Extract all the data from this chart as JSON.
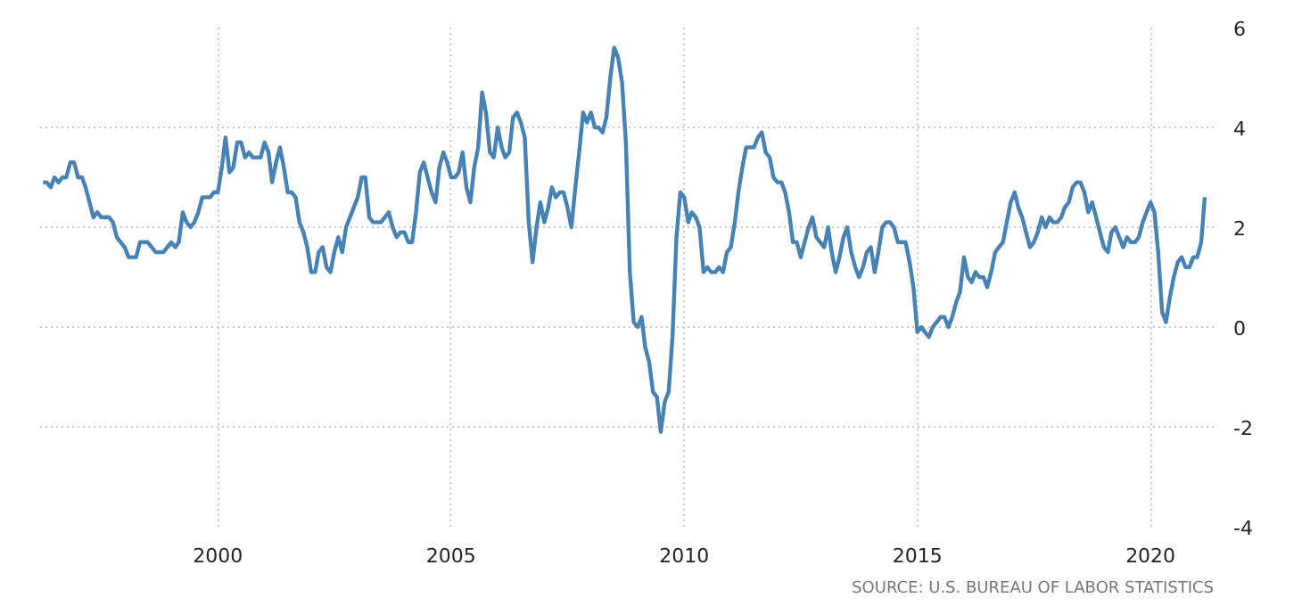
{
  "chart_data": {
    "type": "line",
    "x": [
      "1996-04",
      "1996-05",
      "1996-06",
      "1996-07",
      "1996-08",
      "1996-09",
      "1996-10",
      "1996-11",
      "1996-12",
      "1997-01",
      "1997-02",
      "1997-03",
      "1997-04",
      "1997-05",
      "1997-06",
      "1997-07",
      "1997-08",
      "1997-09",
      "1997-10",
      "1997-11",
      "1997-12",
      "1998-01",
      "1998-02",
      "1998-03",
      "1998-04",
      "1998-05",
      "1998-06",
      "1998-07",
      "1998-08",
      "1998-09",
      "1998-10",
      "1998-11",
      "1998-12",
      "1999-01",
      "1999-02",
      "1999-03",
      "1999-04",
      "1999-05",
      "1999-06",
      "1999-07",
      "1999-08",
      "1999-09",
      "1999-10",
      "1999-11",
      "1999-12",
      "2000-01",
      "2000-02",
      "2000-03",
      "2000-04",
      "2000-05",
      "2000-06",
      "2000-07",
      "2000-08",
      "2000-09",
      "2000-10",
      "2000-11",
      "2000-12",
      "2001-01",
      "2001-02",
      "2001-03",
      "2001-04",
      "2001-05",
      "2001-06",
      "2001-07",
      "2001-08",
      "2001-09",
      "2001-10",
      "2001-11",
      "2001-12",
      "2002-01",
      "2002-02",
      "2002-03",
      "2002-04",
      "2002-05",
      "2002-06",
      "2002-07",
      "2002-08",
      "2002-09",
      "2002-10",
      "2002-11",
      "2002-12",
      "2003-01",
      "2003-02",
      "2003-03",
      "2003-04",
      "2003-05",
      "2003-06",
      "2003-07",
      "2003-08",
      "2003-09",
      "2003-10",
      "2003-11",
      "2003-12",
      "2004-01",
      "2004-02",
      "2004-03",
      "2004-04",
      "2004-05",
      "2004-06",
      "2004-07",
      "2004-08",
      "2004-09",
      "2004-10",
      "2004-11",
      "2004-12",
      "2005-01",
      "2005-02",
      "2005-03",
      "2005-04",
      "2005-05",
      "2005-06",
      "2005-07",
      "2005-08",
      "2005-09",
      "2005-10",
      "2005-11",
      "2005-12",
      "2006-01",
      "2006-02",
      "2006-03",
      "2006-04",
      "2006-05",
      "2006-06",
      "2006-07",
      "2006-08",
      "2006-09",
      "2006-10",
      "2006-11",
      "2006-12",
      "2007-01",
      "2007-02",
      "2007-03",
      "2007-04",
      "2007-05",
      "2007-06",
      "2007-07",
      "2007-08",
      "2007-09",
      "2007-10",
      "2007-11",
      "2007-12",
      "2008-01",
      "2008-02",
      "2008-03",
      "2008-04",
      "2008-05",
      "2008-06",
      "2008-07",
      "2008-08",
      "2008-09",
      "2008-10",
      "2008-11",
      "2008-12",
      "2009-01",
      "2009-02",
      "2009-03",
      "2009-04",
      "2009-05",
      "2009-06",
      "2009-07",
      "2009-08",
      "2009-09",
      "2009-10",
      "2009-11",
      "2009-12",
      "2010-01",
      "2010-02",
      "2010-03",
      "2010-04",
      "2010-05",
      "2010-06",
      "2010-07",
      "2010-08",
      "2010-09",
      "2010-10",
      "2010-11",
      "2010-12",
      "2011-01",
      "2011-02",
      "2011-03",
      "2011-04",
      "2011-05",
      "2011-06",
      "2011-07",
      "2011-08",
      "2011-09",
      "2011-10",
      "2011-11",
      "2011-12",
      "2012-01",
      "2012-02",
      "2012-03",
      "2012-04",
      "2012-05",
      "2012-06",
      "2012-07",
      "2012-08",
      "2012-09",
      "2012-10",
      "2012-11",
      "2012-12",
      "2013-01",
      "2013-02",
      "2013-03",
      "2013-04",
      "2013-05",
      "2013-06",
      "2013-07",
      "2013-08",
      "2013-09",
      "2013-10",
      "2013-11",
      "2013-12",
      "2014-01",
      "2014-02",
      "2014-03",
      "2014-04",
      "2014-05",
      "2014-06",
      "2014-07",
      "2014-08",
      "2014-09",
      "2014-10",
      "2014-11",
      "2014-12",
      "2015-01",
      "2015-02",
      "2015-03",
      "2015-04",
      "2015-05",
      "2015-06",
      "2015-07",
      "2015-08",
      "2015-09",
      "2015-10",
      "2015-11",
      "2015-12",
      "2016-01",
      "2016-02",
      "2016-03",
      "2016-04",
      "2016-05",
      "2016-06",
      "2016-07",
      "2016-08",
      "2016-09",
      "2016-10",
      "2016-11",
      "2016-12",
      "2017-01",
      "2017-02",
      "2017-03",
      "2017-04",
      "2017-05",
      "2017-06",
      "2017-07",
      "2017-08",
      "2017-09",
      "2017-10",
      "2017-11",
      "2017-12",
      "2018-01",
      "2018-02",
      "2018-03",
      "2018-04",
      "2018-05",
      "2018-06",
      "2018-07",
      "2018-08",
      "2018-09",
      "2018-10",
      "2018-11",
      "2018-12",
      "2019-01",
      "2019-02",
      "2019-03",
      "2019-04",
      "2019-05",
      "2019-06",
      "2019-07",
      "2019-08",
      "2019-09",
      "2019-10",
      "2019-11",
      "2019-12",
      "2020-01",
      "2020-02",
      "2020-03",
      "2020-04",
      "2020-05",
      "2020-06",
      "2020-07",
      "2020-08",
      "2020-09",
      "2020-10",
      "2020-11",
      "2020-12",
      "2021-01",
      "2021-02",
      "2021-03"
    ],
    "series": [
      {
        "color": "#4682b4",
        "values": [
          2.9,
          2.9,
          2.8,
          3.0,
          2.9,
          3.0,
          3.0,
          3.3,
          3.3,
          3.0,
          3.0,
          2.8,
          2.5,
          2.2,
          2.3,
          2.2,
          2.2,
          2.2,
          2.1,
          1.8,
          1.7,
          1.6,
          1.4,
          1.4,
          1.4,
          1.7,
          1.7,
          1.7,
          1.6,
          1.5,
          1.5,
          1.5,
          1.6,
          1.7,
          1.6,
          1.7,
          2.3,
          2.1,
          2.0,
          2.1,
          2.3,
          2.6,
          2.6,
          2.6,
          2.7,
          2.7,
          3.2,
          3.8,
          3.1,
          3.2,
          3.7,
          3.7,
          3.4,
          3.5,
          3.4,
          3.4,
          3.4,
          3.7,
          3.5,
          2.9,
          3.3,
          3.6,
          3.2,
          2.7,
          2.7,
          2.6,
          2.1,
          1.9,
          1.6,
          1.1,
          1.1,
          1.5,
          1.6,
          1.2,
          1.1,
          1.5,
          1.8,
          1.5,
          2.0,
          2.2,
          2.4,
          2.6,
          3.0,
          3.0,
          2.2,
          2.1,
          2.1,
          2.1,
          2.2,
          2.3,
          2.0,
          1.8,
          1.9,
          1.9,
          1.7,
          1.7,
          2.3,
          3.1,
          3.3,
          3.0,
          2.7,
          2.5,
          3.2,
          3.5,
          3.3,
          3.0,
          3.0,
          3.1,
          3.5,
          2.8,
          2.5,
          3.2,
          3.6,
          4.7,
          4.3,
          3.5,
          3.4,
          4.0,
          3.6,
          3.4,
          3.5,
          4.2,
          4.3,
          4.1,
          3.8,
          2.1,
          1.3,
          2.0,
          2.5,
          2.1,
          2.4,
          2.8,
          2.6,
          2.7,
          2.7,
          2.4,
          2.0,
          2.8,
          3.5,
          4.3,
          4.1,
          4.3,
          4.0,
          4.0,
          3.9,
          4.2,
          5.0,
          5.6,
          5.4,
          4.9,
          3.7,
          1.1,
          0.1,
          0.0,
          0.2,
          -0.4,
          -0.7,
          -1.3,
          -1.4,
          -2.1,
          -1.5,
          -1.3,
          -0.2,
          1.8,
          2.7,
          2.6,
          2.1,
          2.3,
          2.2,
          2.0,
          1.1,
          1.2,
          1.1,
          1.1,
          1.2,
          1.1,
          1.5,
          1.6,
          2.1,
          2.7,
          3.2,
          3.6,
          3.6,
          3.6,
          3.8,
          3.9,
          3.5,
          3.4,
          3.0,
          2.9,
          2.9,
          2.7,
          2.3,
          1.7,
          1.7,
          1.4,
          1.7,
          2.0,
          2.2,
          1.8,
          1.7,
          1.6,
          2.0,
          1.5,
          1.1,
          1.4,
          1.8,
          2.0,
          1.5,
          1.2,
          1.0,
          1.2,
          1.5,
          1.6,
          1.1,
          1.5,
          2.0,
          2.1,
          2.1,
          2.0,
          1.7,
          1.7,
          1.7,
          1.3,
          0.8,
          -0.1,
          0.0,
          -0.1,
          -0.2,
          0.0,
          0.1,
          0.2,
          0.2,
          0.0,
          0.2,
          0.5,
          0.7,
          1.4,
          1.0,
          0.9,
          1.1,
          1.0,
          1.0,
          0.8,
          1.1,
          1.5,
          1.6,
          1.7,
          2.1,
          2.5,
          2.7,
          2.4,
          2.2,
          1.9,
          1.6,
          1.7,
          1.9,
          2.2,
          2.0,
          2.2,
          2.1,
          2.1,
          2.2,
          2.4,
          2.5,
          2.8,
          2.9,
          2.9,
          2.7,
          2.3,
          2.5,
          2.2,
          1.9,
          1.6,
          1.5,
          1.9,
          2.0,
          1.8,
          1.6,
          1.8,
          1.7,
          1.7,
          1.8,
          2.1,
          2.3,
          2.5,
          2.3,
          1.5,
          0.3,
          0.1,
          0.6,
          1.0,
          1.3,
          1.4,
          1.2,
          1.2,
          1.4,
          1.4,
          1.7,
          2.6
        ]
      }
    ],
    "xlim": [
      "1996-03-10",
      "2021-05-10"
    ],
    "xticks": [
      "2000",
      "2005",
      "2010",
      "2015",
      "2020"
    ],
    "ylim": [
      -4,
      6
    ],
    "yticks": [
      -4,
      -2,
      0,
      2,
      4,
      6
    ],
    "grid": true,
    "line_style": "solid",
    "annotations": [
      "SOURCE: U.S. BUREAU OF LABOR STATISTICS"
    ]
  }
}
